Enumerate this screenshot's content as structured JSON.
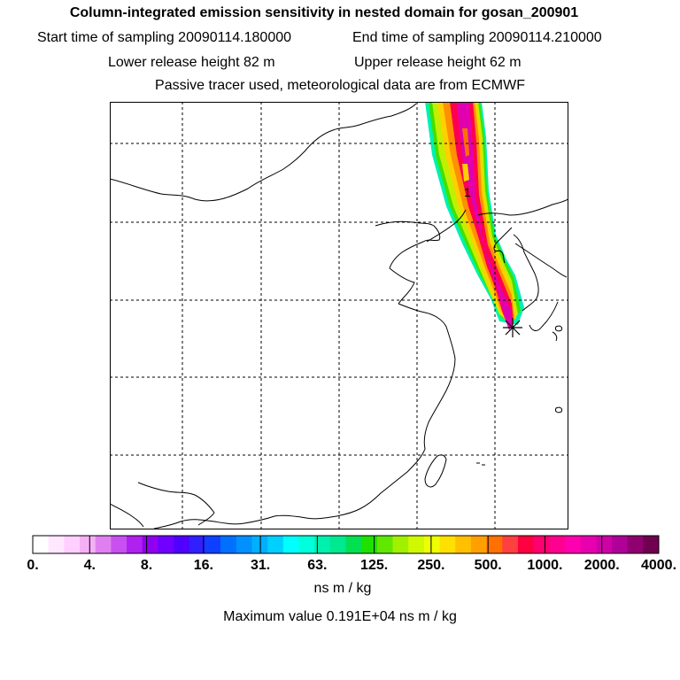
{
  "header": {
    "title": "Column-integrated emission sensitivity in nested domain for gosan_200901",
    "start_label": "Start time of sampling 20090114.180000",
    "end_label": "End time of sampling 20090114.210000",
    "lower_label": "Lower release height   82 m",
    "upper_label": "Upper release height   62 m",
    "note": "Passive tracer used, meteorological data are from ECMWF"
  },
  "map": {
    "release_marker": "asterisk-marker",
    "label_1": "1"
  },
  "colorbar": {
    "colors": [
      "#ffffff",
      "#ffe8ff",
      "#ffd0ff",
      "#f5b0f5",
      "#e080f0",
      "#c850f0",
      "#b020f0",
      "#9000f0",
      "#7000ff",
      "#5000ff",
      "#3020ff",
      "#1040ff",
      "#0070ff",
      "#0090ff",
      "#00b0ff",
      "#00d0ff",
      "#00ffff",
      "#00ffdc",
      "#00f0b0",
      "#00e890",
      "#00e050",
      "#20e000",
      "#60e800",
      "#a0f000",
      "#d0f800",
      "#f0ff00",
      "#ffe000",
      "#ffc000",
      "#ffa000",
      "#ff7000",
      "#ff4040",
      "#ff0040",
      "#ff0070",
      "#ff0090",
      "#ff00b0",
      "#e800b0",
      "#d000a8",
      "#b00098",
      "#900070",
      "#700050"
    ],
    "tick_labels": [
      "0.",
      "4.",
      "8.",
      "16.",
      "31.",
      "63.",
      "125.",
      "250.",
      "500.",
      "1000.",
      "2000.",
      "4000."
    ],
    "units": "ns m / kg",
    "max_label": "Maximum value  0.191E+04 ns m / kg"
  }
}
